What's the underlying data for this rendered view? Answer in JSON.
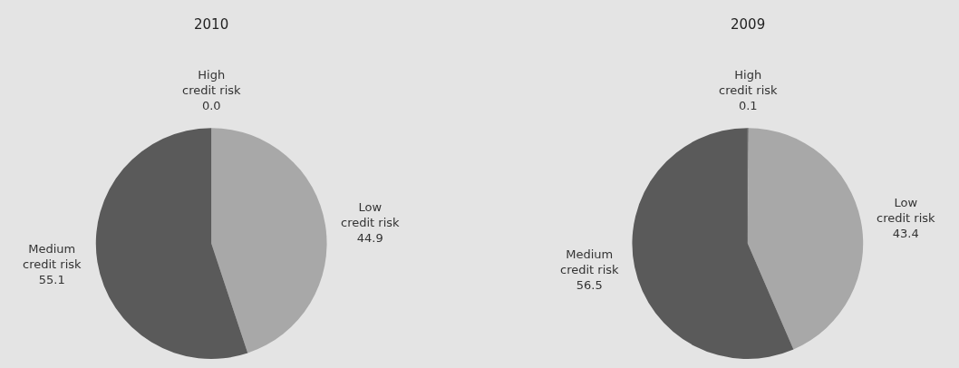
{
  "chart_data": [
    {
      "type": "pie",
      "title": "2010",
      "categories": [
        "High credit risk",
        "Low credit risk",
        "Medium credit risk"
      ],
      "values": [
        0.0,
        44.9,
        55.1
      ],
      "value_labels": [
        "0.0",
        "44.9",
        "55.1"
      ],
      "colors": [
        "#333333",
        "#a8a8a8",
        "#5a5a5a"
      ],
      "legend": false
    },
    {
      "type": "pie",
      "title": "2009",
      "categories": [
        "High credit risk",
        "Low credit risk",
        "Medium credit risk"
      ],
      "values": [
        0.1,
        43.4,
        56.5
      ],
      "value_labels": [
        "0.1",
        "43.4",
        "56.5"
      ],
      "colors": [
        "#333333",
        "#a8a8a8",
        "#5a5a5a"
      ],
      "legend": false
    }
  ]
}
